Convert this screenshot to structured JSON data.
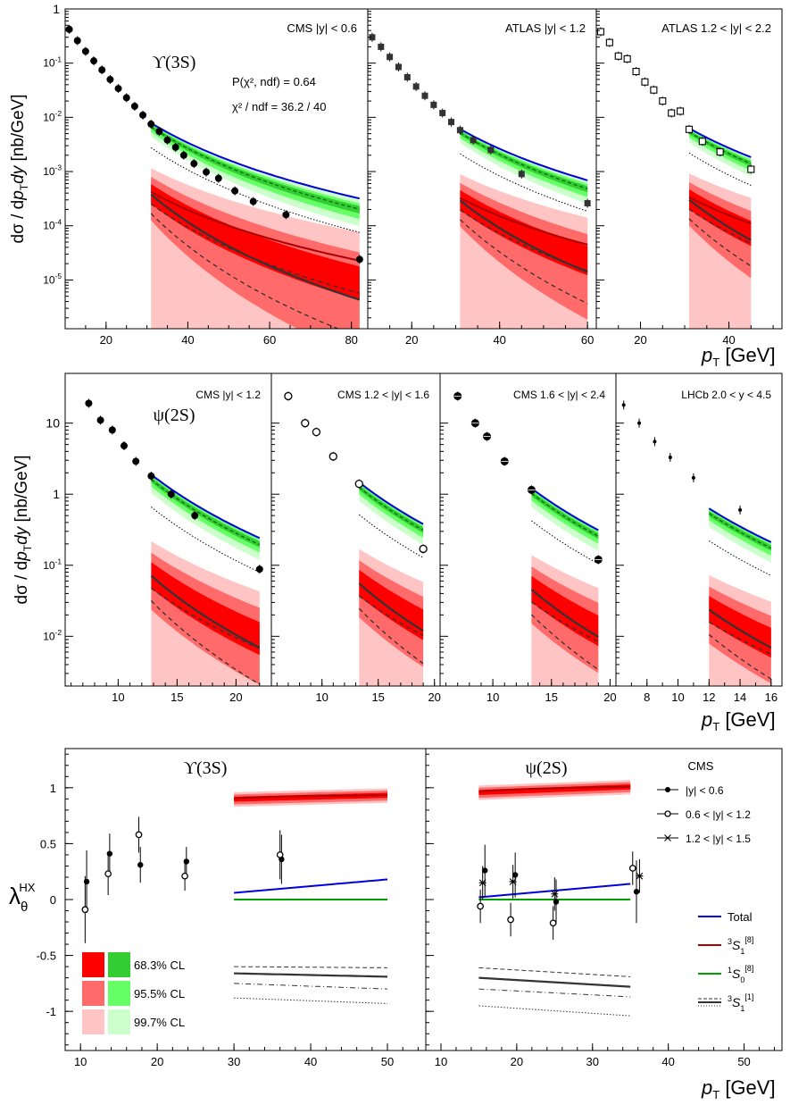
{
  "figure": {
    "xlabel_pt": "p",
    "xlabel_sub": "T",
    "xlabel_unit": " [GeV]"
  },
  "chart_data": [
    {
      "id": "ups",
      "type": "scatter",
      "title": "ϒ(3S)",
      "ylabel": "dσ / dpT dy [nb/GeV]",
      "ylog": [
        -5.9,
        0
      ],
      "yticks": [
        "10^{-5}",
        "10^{-4}",
        "10^{-3}",
        "10^{-2}",
        "10^{-1}",
        "1"
      ],
      "fit_text": [
        "P(χ², ndf) = 0.64",
        "χ² / ndf = 36.2 / 40"
      ],
      "panels": [
        {
          "label": "CMS |y| < 0.6",
          "xlim": [
            10,
            84
          ],
          "xticks": [
            20,
            40,
            60,
            80
          ],
          "series": [
            {
              "name": "CMS |y|<0.6",
              "marker": "filled-circle",
              "x": [
                11,
                13,
                15,
                17,
                19,
                21,
                23,
                25,
                27,
                29,
                31,
                33,
                35,
                37,
                39,
                41.5,
                44.5,
                47.5,
                51.5,
                56,
                64,
                82
              ],
              "y": [
                0.42,
                0.26,
                0.165,
                0.11,
                0.075,
                0.05,
                0.034,
                0.023,
                0.016,
                0.011,
                0.0075,
                0.0055,
                0.0038,
                0.0028,
                0.002,
                0.0014,
                0.00098,
                0.00075,
                0.00044,
                0.00028,
                0.00016,
                2.4e-05
              ]
            }
          ],
          "model": {
            "x0": 31,
            "x1": 82
          }
        },
        {
          "label": "ATLAS |y| < 1.2",
          "xlim": [
            10,
            62
          ],
          "xticks": [
            20,
            40,
            60
          ],
          "series": [
            {
              "name": "ATLAS |y|<1.2",
              "marker": "filled-square",
              "x": [
                11,
                13,
                15,
                17,
                19,
                21,
                23,
                25,
                27,
                29,
                31,
                34,
                38,
                45,
                60
              ],
              "y": [
                0.3,
                0.2,
                0.13,
                0.085,
                0.055,
                0.037,
                0.025,
                0.017,
                0.012,
                0.0082,
                0.0058,
                0.0038,
                0.0025,
                0.0009,
                0.00026
              ]
            }
          ],
          "model": {
            "x0": 31,
            "x1": 60
          }
        },
        {
          "label": "ATLAS 1.2 < |y| < 2.2",
          "xlim": [
            10,
            52
          ],
          "xticks": [
            20,
            40
          ],
          "series": [
            {
              "name": "ATLAS 1.2<|y|<2.2",
              "marker": "open-square",
              "x": [
                11,
                13,
                15,
                17,
                19,
                21,
                23,
                25,
                27,
                29,
                31,
                34,
                38,
                45
              ],
              "y": [
                0.38,
                0.24,
                0.135,
                0.12,
                0.07,
                0.045,
                0.032,
                0.02,
                0.012,
                0.013,
                0.006,
                0.0036,
                0.0023,
                0.0011
              ]
            }
          ],
          "model": {
            "x0": 31,
            "x1": 45
          }
        }
      ]
    },
    {
      "id": "psi",
      "type": "scatter",
      "title": "ψ(2S)",
      "ylabel": "dσ / dpT dy [nb/GeV]",
      "ylog": [
        -2.7,
        1.7
      ],
      "yticks": [
        "10^{-2}",
        "10^{-1}",
        "1",
        "10"
      ],
      "panels": [
        {
          "label": "CMS |y| < 1.2",
          "xlim": [
            5.5,
            23
          ],
          "xticks": [
            10,
            15,
            20
          ],
          "series": [
            {
              "name": "CMS |y|<1.2",
              "marker": "filled-circle",
              "x": [
                7.5,
                8.5,
                9.5,
                10.5,
                11.5,
                12.8,
                14.5,
                16.5,
                22
              ],
              "y": [
                19,
                11,
                8,
                4.8,
                2.9,
                1.8,
                1.0,
                0.5,
                0.088
              ]
            }
          ],
          "model": {
            "x0": 12.8,
            "x1": 22
          }
        },
        {
          "label": "CMS 1.2 < |y| < 1.6",
          "xlim": [
            5.5,
            20.5
          ],
          "xticks": [
            10,
            15,
            20
          ],
          "series": [
            {
              "name": "CMS 1.2<|y|<1.6",
              "marker": "open-circle",
              "x": [
                7,
                8.5,
                9.5,
                11,
                13.3,
                19
              ],
              "y": [
                24,
                10,
                7.5,
                3.4,
                1.4,
                0.17
              ]
            }
          ],
          "model": {
            "x0": 13.3,
            "x1": 19
          }
        },
        {
          "label": "CMS 1.6 < |y| < 2.4",
          "xlim": [
            5.5,
            20.5
          ],
          "xticks": [
            10,
            15,
            20
          ],
          "series": [
            {
              "name": "CMS 1.6<|y|<2.4",
              "marker": "circle-plus",
              "x": [
                7,
                8.5,
                9.5,
                11,
                13.3,
                19
              ],
              "y": [
                24,
                10,
                6.5,
                2.9,
                1.15,
                0.12
              ]
            }
          ],
          "model": {
            "x0": 13.3,
            "x1": 19
          }
        },
        {
          "label": "LHCb 2.0 < y < 4.5",
          "xlim": [
            6,
            16.7
          ],
          "xticks": [
            8,
            10,
            12,
            14,
            16
          ],
          "series": [
            {
              "name": "LHCb 2.0<y<4.5",
              "marker": "small-circle",
              "x": [
                6.5,
                7.5,
                8.5,
                9.5,
                11,
                14
              ],
              "y": [
                18,
                10,
                5.5,
                3.3,
                1.7,
                0.6
              ]
            }
          ],
          "model": {
            "x0": 12,
            "x1": 16
          }
        }
      ]
    },
    {
      "id": "lambda",
      "type": "scatter",
      "ylabel": "λθ HX",
      "ylim": [
        -1.35,
        1.35
      ],
      "yticks": [
        -1,
        -0.5,
        0,
        0.5,
        1
      ],
      "yticklabels": [
        "-1",
        "-0.5",
        "0",
        "0.5",
        "1"
      ],
      "panels": [
        {
          "title": "ϒ(3S)",
          "xlim": [
            8,
            55
          ],
          "xticks": [
            10,
            20,
            30,
            40,
            50
          ],
          "series": [
            {
              "name": "|y| < 0.6",
              "marker": "filled-circle",
              "x": [
                10.8,
                13.8,
                17.8,
                23.8,
                36.2
              ],
              "y": [
                0.16,
                0.41,
                0.31,
                0.34,
                0.36
              ],
              "err": [
                0.28,
                0.18,
                0.16,
                0.13,
                0.22
              ]
            },
            {
              "name": "0.6 < |y| < 1.2",
              "marker": "open-circle",
              "x": [
                10.6,
                13.6,
                17.6,
                23.6,
                36.0
              ],
              "y": [
                -0.09,
                0.23,
                0.58,
                0.21,
                0.4
              ],
              "err": [
                0.3,
                0.19,
                0.16,
                0.13,
                0.22
              ]
            }
          ],
          "model": {
            "x0": 30,
            "x1": 50,
            "total": [
              0.06,
              0.18
            ],
            "s18": [
              0.9,
              0.935
            ],
            "s1_solid": [
              -0.66,
              -0.69
            ],
            "s1_dash": [
              -0.6,
              -0.61
            ],
            "s1_dashdot": [
              -0.75,
              -0.8
            ],
            "s1_dot": [
              -0.88,
              -0.93
            ]
          }
        },
        {
          "title": "ψ(2S)",
          "xlim": [
            8,
            55
          ],
          "xticks": [
            10,
            20,
            30,
            40,
            50
          ],
          "series": [
            {
              "name": "|y| < 0.6",
              "marker": "filled-circle",
              "x": [
                15.8,
                19.8,
                25.2,
                35.8
              ],
              "y": [
                0.26,
                0.22,
                -0.02,
                0.07
              ],
              "err": [
                0.23,
                0.2,
                0.2,
                0.28
              ]
            },
            {
              "name": "0.6 < |y| < 1.2",
              "marker": "open-circle",
              "x": [
                15.2,
                19.2,
                24.8,
                35.3
              ],
              "y": [
                -0.06,
                -0.18,
                -0.21,
                0.28
              ],
              "err": [
                0.15,
                0.15,
                0.15,
                0.15
              ]
            },
            {
              "name": "1.2 < |y| < 1.5",
              "marker": "star",
              "x": [
                15.5,
                19.5,
                25.0,
                36.2
              ],
              "y": [
                0.15,
                0.16,
                0.05,
                0.21
              ],
              "err": [
                0.15,
                0.15,
                0.15,
                0.15
              ]
            }
          ],
          "model": {
            "x0": 15,
            "x1": 35,
            "total": [
              0.02,
              0.14
            ],
            "s18": [
              0.96,
              1.01
            ],
            "s1_solid": [
              -0.7,
              -0.78
            ],
            "s1_dash": [
              -0.61,
              -0.69
            ],
            "s1_dashdot": [
              -0.8,
              -0.87
            ],
            "s1_dot": [
              -0.95,
              -1.04
            ]
          }
        }
      ],
      "legend": {
        "experiment": "CMS",
        "entries": [
          "|y| < 0.6",
          "0.6 < |y| < 1.2",
          "1.2 < |y| < 1.5"
        ],
        "models": [
          "Total",
          "3S1[8]",
          "1S0[8]",
          "3S1[1]"
        ],
        "cl": [
          "68.3% CL",
          "95.5% CL",
          "99.7% CL"
        ]
      }
    }
  ],
  "colors": {
    "red1": "#ff0000",
    "red2": "#ff6a6a",
    "red3": "#ffc4c4",
    "green1": "#33cc33",
    "green2": "#66ff66",
    "green3": "#ccffcc",
    "blue": "#0000dd",
    "darkred": "#aa0000",
    "green_line": "#00a000",
    "grey": "#333333"
  }
}
